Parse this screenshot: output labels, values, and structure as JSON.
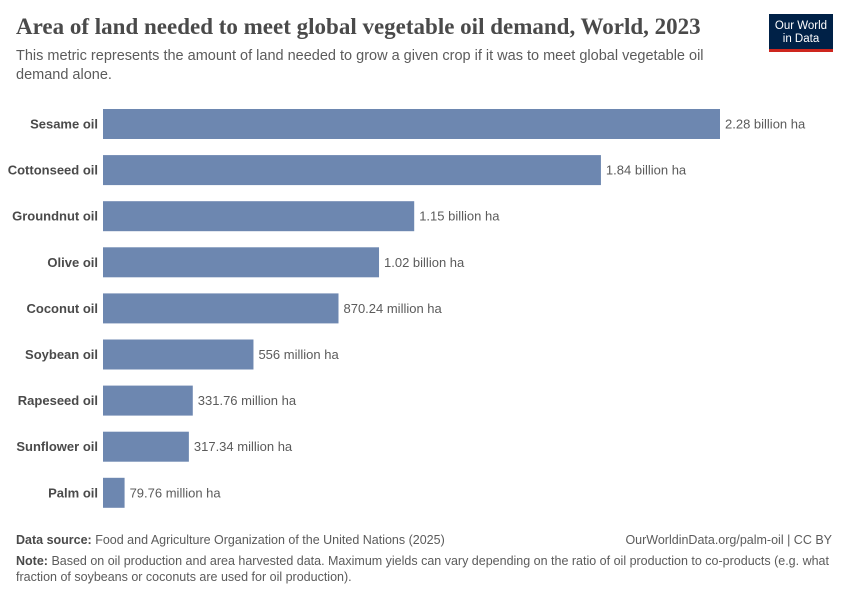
{
  "header": {
    "title": "Area of land needed to meet global vegetable oil demand, World, 2023",
    "subtitle": "This metric represents the amount of land needed to grow a given crop if it was to meet global vegetable oil demand alone.",
    "logo": "Our World in Data"
  },
  "chart_data": {
    "type": "bar",
    "orientation": "horizontal",
    "unit": "hectares",
    "categories": [
      "Sesame oil",
      "Cottonseed oil",
      "Groundnut oil",
      "Olive oil",
      "Coconut oil",
      "Soybean oil",
      "Rapeseed oil",
      "Sunflower oil",
      "Palm oil"
    ],
    "values": [
      2280000000,
      1840000000,
      1150000000,
      1020000000,
      870240000,
      556000000,
      331760000,
      317340000,
      79760000
    ],
    "data_labels": [
      "2.28 billion ha",
      "1.84 billion ha",
      "1.15 billion ha",
      "1.02 billion ha",
      "870.24 million ha",
      "556 million ha",
      "331.76 million ha",
      "317.34 million ha",
      "79.76 million ha"
    ],
    "bar_color": "#6d87b0",
    "grid": false,
    "legend": "none"
  },
  "footer": {
    "source_label": "Data source:",
    "source": "Food and Agriculture Organization of the United Nations (2025)",
    "url": "OurWorldinData.org/palm-oil | CC BY",
    "note_label": "Note:",
    "note": "Based on oil production and area harvested data. Maximum yields can vary depending on the ratio of oil production to co-products (e.g. what fraction of soybeans or coconuts are used for oil production)."
  }
}
